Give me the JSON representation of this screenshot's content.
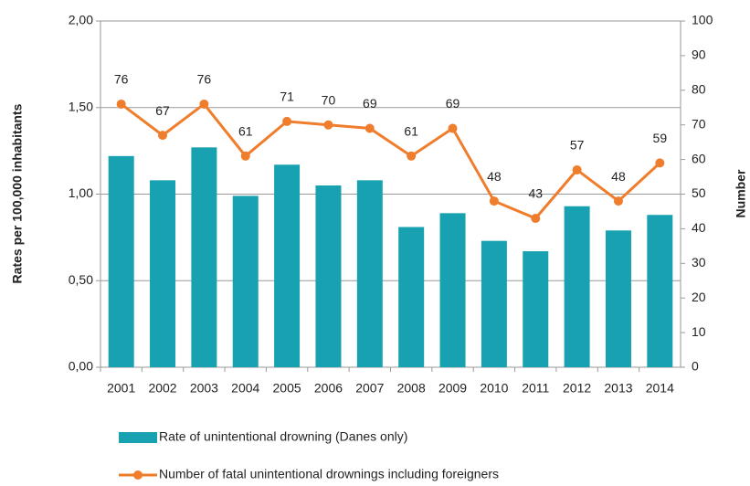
{
  "chart_data": {
    "type": "bar",
    "categories": [
      "2001",
      "2002",
      "2003",
      "2004",
      "2005",
      "2006",
      "2007",
      "2008",
      "2009",
      "2010",
      "2011",
      "2012",
      "2013",
      "2014"
    ],
    "series": [
      {
        "name": "Rate of unintentional drowning (Danes only)",
        "type": "bar",
        "color": "#17a1b1",
        "values": [
          1.22,
          1.08,
          1.27,
          0.99,
          1.17,
          1.05,
          1.08,
          0.81,
          0.89,
          0.73,
          0.67,
          0.93,
          0.79,
          0.88
        ]
      },
      {
        "name": "Number of fatal unintentional drownings including foreigners",
        "type": "line",
        "axis": "y2",
        "color": "#ef7d2c",
        "values": [
          76,
          67,
          76,
          61,
          71,
          70,
          69,
          61,
          69,
          48,
          43,
          57,
          48,
          59
        ]
      }
    ],
    "ylabel": "Rates per 100,000 inhabitants",
    "y2label": "Number",
    "ylim": [
      0,
      2
    ],
    "yticks": [
      {
        "value": 0,
        "label": "0,00"
      },
      {
        "value": 0.5,
        "label": "0,50"
      },
      {
        "value": 1,
        "label": "1,00"
      },
      {
        "value": 1.5,
        "label": "1,50"
      },
      {
        "value": 2,
        "label": "2,00"
      }
    ],
    "y2lim": [
      0,
      100
    ],
    "y2ticks": [
      0,
      10,
      20,
      30,
      40,
      50,
      60,
      70,
      80,
      90,
      100
    ],
    "grid": true,
    "legend": "bottom"
  }
}
